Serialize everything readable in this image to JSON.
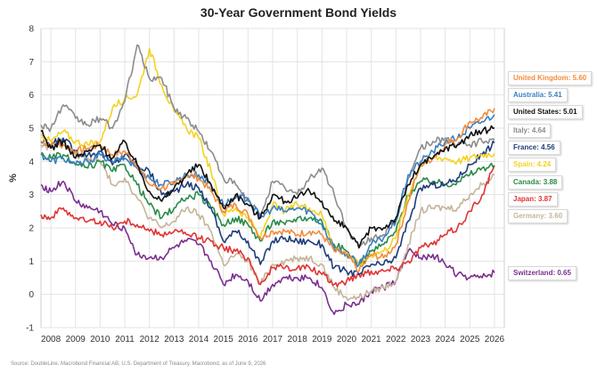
{
  "chart_data": {
    "type": "line",
    "title": "30-Year Government Bond Yields",
    "ylabel": "%",
    "xlabel": "",
    "xlim": [
      2007.6,
      2026.4
    ],
    "ylim": [
      -1,
      8
    ],
    "yticks": [
      -1,
      0,
      1,
      2,
      3,
      4,
      5,
      6,
      7,
      8
    ],
    "xticks": [
      2008,
      2009,
      2010,
      2011,
      2012,
      2013,
      2014,
      2015,
      2016,
      2017,
      2018,
      2019,
      2020,
      2021,
      2022,
      2023,
      2024,
      2025,
      2026
    ],
    "grid": true,
    "legend_position": "right",
    "source": "Source: DoubleLine, Macrobond Financial AB, U.S. Department of Treasury, Macrobond, as of June 9, 2026",
    "series": [
      {
        "name": "United Kingdom",
        "label": "United Kingdom: 5.60",
        "color": "#f28c3c",
        "x": [
          2007.6,
          2008.0,
          2008.5,
          2009.0,
          2009.5,
          2010.0,
          2010.5,
          2011.0,
          2011.5,
          2012.0,
          2012.5,
          2013.0,
          2013.5,
          2014.0,
          2014.5,
          2015.0,
          2015.5,
          2016.0,
          2016.5,
          2017.0,
          2017.5,
          2018.0,
          2018.5,
          2019.0,
          2019.5,
          2020.0,
          2020.5,
          2021.0,
          2021.5,
          2022.0,
          2022.5,
          2023.0,
          2023.5,
          2024.0,
          2024.5,
          2025.0,
          2025.5,
          2026.0
        ],
        "y": [
          4.6,
          4.5,
          4.5,
          4.3,
          4.4,
          4.5,
          4.2,
          4.3,
          3.9,
          3.3,
          3.2,
          3.3,
          3.6,
          3.5,
          3.1,
          2.5,
          2.7,
          2.4,
          1.7,
          1.9,
          1.9,
          1.8,
          1.9,
          1.8,
          1.3,
          1.2,
          0.7,
          1.2,
          1.1,
          1.5,
          2.8,
          3.9,
          4.1,
          4.5,
          4.7,
          5.2,
          5.3,
          5.6
        ]
      },
      {
        "name": "Australia",
        "label": "Australia: 5.41",
        "color": "#3a7fc1",
        "x": [
          2007.6,
          2008.0,
          2008.5,
          2009.0,
          2009.5,
          2010.0,
          2010.5,
          2011.0,
          2011.5,
          2012.0,
          2012.5,
          2013.0,
          2013.5,
          2014.0,
          2014.5,
          2015.0,
          2015.5,
          2016.0,
          2016.5,
          2017.0,
          2017.5,
          2018.0,
          2018.5,
          2019.0,
          2019.5,
          2020.0,
          2020.5,
          2021.0,
          2021.5,
          2022.0,
          2022.5,
          2023.0,
          2023.5,
          2024.0,
          2024.5,
          2025.0,
          2025.5,
          2026.0
        ],
        "y": [
          4.2,
          4.0,
          4.1,
          3.9,
          4.0,
          4.2,
          4.0,
          4.1,
          3.8,
          3.5,
          3.3,
          3.4,
          3.6,
          3.6,
          3.3,
          2.7,
          2.9,
          2.9,
          2.3,
          2.6,
          2.5,
          2.6,
          2.5,
          2.1,
          1.4,
          1.2,
          0.9,
          1.5,
          1.7,
          2.2,
          3.6,
          4.0,
          4.3,
          4.6,
          4.7,
          5.0,
          5.2,
          5.41
        ]
      },
      {
        "name": "United States",
        "label": "United States: 5.01",
        "color": "#111111",
        "x": [
          2007.6,
          2008.0,
          2008.5,
          2009.0,
          2009.5,
          2010.0,
          2010.5,
          2011.0,
          2011.5,
          2012.0,
          2012.5,
          2013.0,
          2013.5,
          2014.0,
          2014.5,
          2015.0,
          2015.5,
          2016.0,
          2016.5,
          2017.0,
          2017.5,
          2018.0,
          2018.5,
          2019.0,
          2019.5,
          2020.0,
          2020.5,
          2021.0,
          2021.5,
          2022.0,
          2022.5,
          2023.0,
          2023.5,
          2024.0,
          2024.5,
          2025.0,
          2025.5,
          2026.0
        ],
        "y": [
          4.9,
          4.4,
          4.6,
          4.1,
          4.3,
          4.5,
          4.1,
          4.6,
          3.9,
          3.1,
          2.8,
          3.2,
          3.6,
          3.9,
          3.3,
          2.6,
          3.0,
          2.7,
          2.3,
          3.0,
          2.8,
          2.9,
          3.1,
          2.8,
          2.2,
          2.0,
          1.4,
          2.0,
          2.0,
          2.3,
          3.3,
          3.9,
          4.1,
          4.4,
          4.5,
          4.8,
          4.9,
          5.01
        ]
      },
      {
        "name": "Italy",
        "label": "Italy: 4.64",
        "color": "#8c8c8c",
        "x": [
          2007.6,
          2008.0,
          2008.5,
          2009.0,
          2009.5,
          2010.0,
          2010.5,
          2011.0,
          2011.5,
          2012.0,
          2012.5,
          2013.0,
          2013.5,
          2014.0,
          2014.5,
          2015.0,
          2015.5,
          2016.0,
          2016.5,
          2017.0,
          2017.5,
          2018.0,
          2018.5,
          2019.0,
          2019.5,
          2020.0,
          2020.5,
          2021.0,
          2021.5,
          2022.0,
          2022.5,
          2023.0,
          2023.5,
          2024.0,
          2024.5,
          2025.0,
          2025.5,
          2026.0
        ],
        "y": [
          5.1,
          5.0,
          5.7,
          5.3,
          5.1,
          5.3,
          5.0,
          5.8,
          7.5,
          6.5,
          6.5,
          5.6,
          5.3,
          4.9,
          4.3,
          3.5,
          3.3,
          2.8,
          2.4,
          3.4,
          3.2,
          3.0,
          3.5,
          3.8,
          3.0,
          2.0,
          1.4,
          1.7,
          1.8,
          2.2,
          3.5,
          4.4,
          4.6,
          4.7,
          4.5,
          4.5,
          4.6,
          4.64
        ]
      },
      {
        "name": "France",
        "label": "France: 4.56",
        "color": "#1f3d7a",
        "x": [
          2007.6,
          2008.0,
          2008.5,
          2009.0,
          2009.5,
          2010.0,
          2010.5,
          2011.0,
          2011.5,
          2012.0,
          2012.5,
          2013.0,
          2013.5,
          2014.0,
          2014.5,
          2015.0,
          2015.5,
          2016.0,
          2016.5,
          2017.0,
          2017.5,
          2018.0,
          2018.5,
          2019.0,
          2019.5,
          2020.0,
          2020.5,
          2021.0,
          2021.5,
          2022.0,
          2022.5,
          2023.0,
          2023.5,
          2024.0,
          2024.5,
          2025.0,
          2025.5,
          2026.0
        ],
        "y": [
          4.6,
          4.5,
          4.7,
          4.3,
          4.2,
          4.3,
          3.9,
          4.2,
          3.9,
          3.7,
          3.0,
          3.1,
          3.3,
          3.2,
          2.6,
          1.6,
          1.9,
          1.6,
          0.9,
          1.6,
          1.7,
          1.6,
          1.6,
          1.5,
          0.8,
          0.7,
          0.6,
          0.9,
          0.9,
          1.1,
          2.2,
          3.2,
          3.3,
          3.3,
          3.5,
          3.9,
          4.2,
          4.56
        ]
      },
      {
        "name": "Spain",
        "label": "Spain: 4.24",
        "color": "#f4d21f",
        "x": [
          2007.6,
          2008.0,
          2008.5,
          2009.0,
          2009.5,
          2010.0,
          2010.5,
          2011.0,
          2011.5,
          2012.0,
          2012.5,
          2013.0,
          2013.5,
          2014.0,
          2014.5,
          2015.0,
          2015.5,
          2016.0,
          2016.5,
          2017.0,
          2017.5,
          2018.0,
          2018.5,
          2019.0,
          2019.5,
          2020.0,
          2020.5,
          2021.0,
          2021.5,
          2022.0,
          2022.5,
          2023.0,
          2023.5,
          2024.0,
          2024.5,
          2025.0,
          2025.5,
          2026.0
        ],
        "y": [
          4.8,
          4.6,
          4.9,
          4.6,
          4.5,
          4.6,
          5.6,
          5.9,
          6.0,
          7.4,
          6.3,
          5.5,
          5.0,
          4.7,
          3.7,
          2.4,
          2.6,
          2.3,
          1.7,
          2.7,
          2.5,
          2.7,
          2.6,
          2.4,
          1.4,
          1.2,
          0.9,
          1.2,
          1.3,
          1.7,
          3.0,
          3.9,
          4.1,
          4.1,
          4.0,
          4.1,
          4.2,
          4.24
        ]
      },
      {
        "name": "Canada",
        "label": "Canada: 3.88",
        "color": "#2a8b47",
        "x": [
          2007.6,
          2008.0,
          2008.5,
          2009.0,
          2009.5,
          2010.0,
          2010.5,
          2011.0,
          2011.5,
          2012.0,
          2012.5,
          2013.0,
          2013.5,
          2014.0,
          2014.5,
          2015.0,
          2015.5,
          2016.0,
          2016.5,
          2017.0,
          2017.5,
          2018.0,
          2018.5,
          2019.0,
          2019.5,
          2020.0,
          2020.5,
          2021.0,
          2021.5,
          2022.0,
          2022.5,
          2023.0,
          2023.5,
          2024.0,
          2024.5,
          2025.0,
          2025.5,
          2026.0
        ],
        "y": [
          4.2,
          4.1,
          4.2,
          3.9,
          3.8,
          4.0,
          3.7,
          3.9,
          3.3,
          2.7,
          2.3,
          2.6,
          2.9,
          3.0,
          2.6,
          2.1,
          2.3,
          2.1,
          1.6,
          2.2,
          2.1,
          2.3,
          2.3,
          2.2,
          1.5,
          1.3,
          0.9,
          1.3,
          1.5,
          1.9,
          3.0,
          3.4,
          3.4,
          3.3,
          3.4,
          3.6,
          3.8,
          3.88
        ]
      },
      {
        "name": "Japan",
        "label": "Japan: 3.87",
        "color": "#e03434",
        "x": [
          2007.6,
          2008.0,
          2008.5,
          2009.0,
          2009.5,
          2010.0,
          2010.5,
          2011.0,
          2011.5,
          2012.0,
          2012.5,
          2013.0,
          2013.5,
          2014.0,
          2014.5,
          2015.0,
          2015.5,
          2016.0,
          2016.5,
          2017.0,
          2017.5,
          2018.0,
          2018.5,
          2019.0,
          2019.5,
          2020.0,
          2020.5,
          2021.0,
          2021.5,
          2022.0,
          2022.5,
          2023.0,
          2023.5,
          2024.0,
          2024.5,
          2025.0,
          2025.5,
          2026.0
        ],
        "y": [
          2.4,
          2.3,
          2.6,
          2.3,
          2.2,
          2.2,
          2.0,
          2.2,
          2.1,
          1.9,
          1.8,
          1.9,
          1.8,
          1.7,
          1.6,
          1.4,
          1.3,
          1.1,
          0.3,
          0.8,
          0.8,
          0.8,
          0.8,
          0.6,
          0.3,
          0.4,
          0.6,
          0.7,
          0.7,
          0.8,
          1.0,
          1.4,
          1.5,
          1.8,
          2.0,
          2.5,
          3.0,
          3.87
        ]
      },
      {
        "name": "Germany",
        "label": "Germany: 3.60",
        "color": "#c4b59a",
        "x": [
          2007.6,
          2008.0,
          2008.5,
          2009.0,
          2009.5,
          2010.0,
          2010.5,
          2011.0,
          2011.5,
          2012.0,
          2012.5,
          2013.0,
          2013.5,
          2014.0,
          2014.5,
          2015.0,
          2015.5,
          2016.0,
          2016.5,
          2017.0,
          2017.5,
          2018.0,
          2018.5,
          2019.0,
          2019.5,
          2020.0,
          2020.5,
          2021.0,
          2021.5,
          2022.0,
          2022.5,
          2023.0,
          2023.5,
          2024.0,
          2024.5,
          2025.0,
          2025.5,
          2026.0
        ],
        "y": [
          4.5,
          4.4,
          4.6,
          4.2,
          4.1,
          4.0,
          3.3,
          3.5,
          2.9,
          2.3,
          2.0,
          2.2,
          2.6,
          2.4,
          1.9,
          0.9,
          1.2,
          1.0,
          0.3,
          0.9,
          1.0,
          1.1,
          1.1,
          0.9,
          0.2,
          -0.1,
          -0.1,
          0.1,
          0.2,
          0.4,
          1.5,
          2.5,
          2.6,
          2.6,
          2.6,
          3.0,
          3.3,
          3.6
        ]
      },
      {
        "name": "Switzerland",
        "label": "Switzerland: 0.65",
        "color": "#7b2f8f",
        "x": [
          2007.6,
          2008.0,
          2008.5,
          2009.0,
          2009.5,
          2010.0,
          2010.5,
          2011.0,
          2011.5,
          2012.0,
          2012.5,
          2013.0,
          2013.5,
          2014.0,
          2014.5,
          2015.0,
          2015.5,
          2016.0,
          2016.5,
          2017.0,
          2017.5,
          2018.0,
          2018.5,
          2019.0,
          2019.5,
          2020.0,
          2020.5,
          2021.0,
          2021.5,
          2022.0,
          2022.5,
          2023.0,
          2023.5,
          2024.0,
          2024.5,
          2025.0,
          2025.5,
          2026.0
        ],
        "y": [
          3.3,
          3.1,
          3.4,
          2.8,
          2.6,
          2.5,
          2.1,
          2.0,
          1.2,
          1.1,
          1.1,
          1.4,
          1.6,
          1.5,
          1.0,
          0.3,
          0.6,
          0.4,
          -0.2,
          0.3,
          0.5,
          0.5,
          0.5,
          0.2,
          -0.6,
          -0.3,
          -0.3,
          0.1,
          0.2,
          0.4,
          1.3,
          1.1,
          1.2,
          0.9,
          0.6,
          0.5,
          0.5,
          0.65
        ]
      }
    ]
  }
}
